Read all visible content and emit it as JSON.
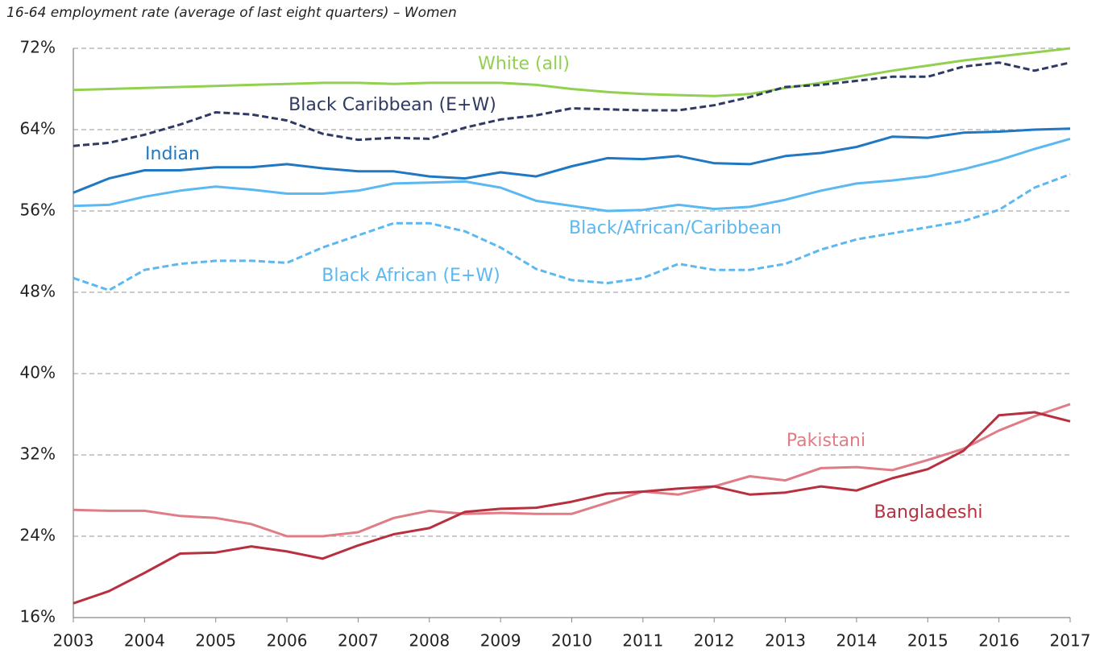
{
  "chart_data": {
    "type": "line",
    "title": "16-64 employment rate (average of last eight quarters) – Women",
    "x": [
      2003,
      2003.5,
      2004,
      2004.5,
      2005,
      2005.5,
      2006,
      2006.5,
      2007,
      2007.5,
      2008,
      2008.5,
      2009,
      2009.5,
      2010,
      2010.5,
      2011,
      2011.5,
      2012,
      2012.5,
      2013,
      2013.5,
      2014,
      2014.5,
      2015,
      2015.5,
      2016,
      2016.5,
      2017
    ],
    "xlim": [
      2003,
      2017
    ],
    "xticks": [
      2003,
      2004,
      2005,
      2006,
      2007,
      2008,
      2009,
      2010,
      2011,
      2012,
      2013,
      2014,
      2015,
      2016,
      2017
    ],
    "ylim": [
      16,
      72
    ],
    "yticks": [
      {
        "value": 16,
        "label": "16%"
      },
      {
        "value": 24,
        "label": "24%"
      },
      {
        "value": 32,
        "label": "32%"
      },
      {
        "value": 40,
        "label": "40%"
      },
      {
        "value": 48,
        "label": "48%"
      },
      {
        "value": 56,
        "label": "56%"
      },
      {
        "value": 64,
        "label": "64%"
      },
      {
        "value": 72,
        "label": "72%"
      }
    ],
    "grid": true,
    "series": [
      {
        "name": "White (all)",
        "color": "#92d050",
        "dashed": false,
        "values": [
          67.9,
          68.0,
          68.1,
          68.2,
          68.3,
          68.4,
          68.5,
          68.6,
          68.6,
          68.5,
          68.6,
          68.6,
          68.6,
          68.4,
          68.0,
          67.7,
          67.5,
          67.4,
          67.3,
          67.5,
          68.1,
          68.6,
          69.2,
          69.8,
          70.3,
          70.8,
          71.2,
          71.6,
          72.0
        ]
      },
      {
        "name": "Black Caribbean (E+W)",
        "color": "#2e3a63",
        "dashed": true,
        "values": [
          62.4,
          62.7,
          63.5,
          64.5,
          65.7,
          65.5,
          64.9,
          63.6,
          63.0,
          63.2,
          63.1,
          64.2,
          65.0,
          65.4,
          66.1,
          66.0,
          65.9,
          65.9,
          66.4,
          67.2,
          68.2,
          68.4,
          68.8,
          69.2,
          69.2,
          70.2,
          70.6,
          69.8,
          70.6
        ]
      },
      {
        "name": "Indian",
        "color": "#1f78c1",
        "dashed": false,
        "values": [
          57.8,
          59.2,
          60.0,
          60.0,
          60.3,
          60.3,
          60.6,
          60.2,
          59.9,
          59.9,
          59.4,
          59.2,
          59.8,
          59.4,
          60.4,
          61.2,
          61.1,
          61.4,
          60.7,
          60.6,
          61.4,
          61.7,
          62.3,
          63.3,
          63.2,
          63.7,
          63.8,
          64.0,
          64.1
        ]
      },
      {
        "name": "Black/African/Caribbean",
        "color": "#5bb8f0",
        "dashed": false,
        "values": [
          56.5,
          56.6,
          57.4,
          58.0,
          58.4,
          58.1,
          57.7,
          57.7,
          58.0,
          58.7,
          58.8,
          58.9,
          58.3,
          57.0,
          56.5,
          56.0,
          56.1,
          56.6,
          56.2,
          56.4,
          57.1,
          58.0,
          58.7,
          59.0,
          59.4,
          60.1,
          61.0,
          62.1,
          63.1
        ]
      },
      {
        "name": "Black African (E+W)",
        "color": "#5bb8f0",
        "dashed": true,
        "values": [
          49.4,
          48.2,
          50.2,
          50.8,
          51.1,
          51.1,
          50.9,
          52.4,
          53.6,
          54.8,
          54.8,
          54.0,
          52.4,
          50.3,
          49.2,
          48.9,
          49.4,
          50.8,
          50.2,
          50.2,
          50.8,
          52.2,
          53.2,
          53.8,
          54.4,
          55.0,
          56.1,
          58.3,
          59.6
        ]
      },
      {
        "name": "Pakistani",
        "color": "#e07c86",
        "dashed": false,
        "values": [
          26.6,
          26.5,
          26.5,
          26.0,
          25.8,
          25.2,
          24.0,
          24.0,
          24.4,
          25.8,
          26.5,
          26.2,
          26.3,
          26.2,
          26.2,
          27.3,
          28.4,
          28.1,
          28.9,
          29.9,
          29.5,
          30.7,
          30.8,
          30.5,
          31.5,
          32.6,
          34.4,
          35.8,
          37.0
        ]
      },
      {
        "name": "Bangladeshi",
        "color": "#b8303f",
        "dashed": false,
        "values": [
          17.4,
          18.6,
          20.4,
          22.3,
          22.4,
          23.0,
          22.5,
          21.8,
          23.1,
          24.2,
          24.8,
          26.4,
          26.7,
          26.8,
          27.4,
          28.2,
          28.4,
          28.7,
          28.9,
          28.1,
          28.3,
          28.9,
          28.5,
          29.7,
          30.6,
          32.4,
          35.9,
          36.2,
          35.3
        ]
      }
    ]
  }
}
